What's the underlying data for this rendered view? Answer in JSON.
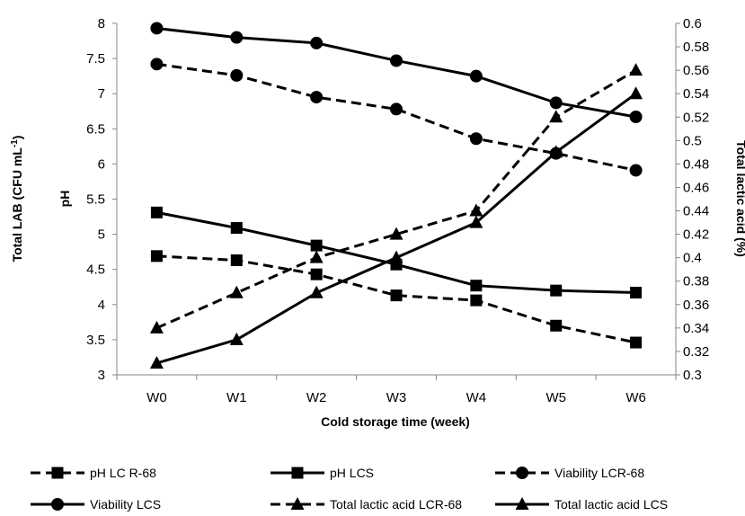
{
  "chart_data": {
    "type": "line",
    "categories": [
      "W0",
      "W1",
      "W2",
      "W3",
      "W4",
      "W5",
      "W6"
    ],
    "xlabel": "Cold storage time (week)",
    "y_left": {
      "label_main": "Total LAB (CFU mL",
      "label_sup": "-1",
      "label_end": ")",
      "label_pH": "pH",
      "ylim": [
        3,
        8
      ],
      "ticks": [
        "3",
        "3.5",
        "4",
        "4.5",
        "5",
        "5.5",
        "6",
        "6.5",
        "7",
        "7.5",
        "8"
      ]
    },
    "y_right": {
      "label": "Total lactic acid (%)",
      "ylim": [
        0.3,
        0.6
      ],
      "ticks": [
        "0.3",
        "0.32",
        "0.34",
        "0.36",
        "0.38",
        "0.4",
        "0.42",
        "0.44",
        "0.46",
        "0.48",
        "0.5",
        "0.52",
        "0.54",
        "0.56",
        "0.58",
        "0.6"
      ]
    },
    "grid": false,
    "legend_position": "bottom",
    "series": [
      {
        "name": "pH LC R-68",
        "axis": "left",
        "marker": "square",
        "dash": true,
        "values": [
          4.69,
          4.63,
          4.43,
          4.13,
          4.06,
          3.7,
          3.46
        ]
      },
      {
        "name": "pH LCS",
        "axis": "left",
        "marker": "square",
        "dash": false,
        "values": [
          5.31,
          5.09,
          4.84,
          4.57,
          4.27,
          4.2,
          4.17
        ]
      },
      {
        "name": "Viability LCR-68",
        "axis": "left",
        "marker": "circle",
        "dash": true,
        "values": [
          7.42,
          7.26,
          6.95,
          6.78,
          6.36,
          6.15,
          5.91
        ]
      },
      {
        "name": "Viability LCS",
        "axis": "left",
        "marker": "circle",
        "dash": false,
        "values": [
          7.93,
          7.8,
          7.72,
          7.47,
          7.25,
          6.87,
          6.67
        ]
      },
      {
        "name": "Total lactic acid LCR-68",
        "axis": "right",
        "marker": "triangle",
        "dash": true,
        "values": [
          0.34,
          0.37,
          0.4,
          0.42,
          0.44,
          0.52,
          0.56
        ]
      },
      {
        "name": "Total lactic acid LCS",
        "axis": "right",
        "marker": "triangle",
        "dash": false,
        "values": [
          0.31,
          0.33,
          0.37,
          0.4,
          0.43,
          0.49,
          0.54
        ]
      }
    ]
  }
}
